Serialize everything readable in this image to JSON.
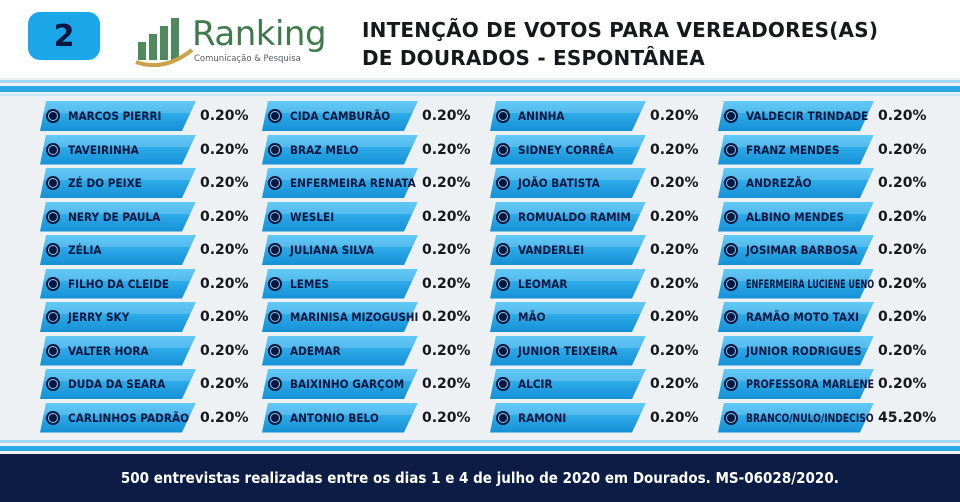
{
  "header": {
    "number": "2",
    "logo_name": "Ranking",
    "logo_tagline": "Comunicação & Pesquisa",
    "title_line1": "INTENÇÃO DE VOTOS PARA VEREADORES(AS)",
    "title_line2": "DE DOURADOS - ESPONTÂNEA"
  },
  "footer": {
    "note": "500 entrevistas realizadas entre os dias 1 e 4 de julho de 2020 em Dourados. MS-06028/2020."
  },
  "colors": {
    "accent": "#1aa6e8",
    "pill_top": "#3fbef5",
    "pill_bottom": "#1590d6",
    "text_dark": "#0b1640",
    "footer_bg": "#0c1c44",
    "logo_green": "#3f7a4d",
    "logo_gold": "#c9a24a"
  },
  "chart_data": {
    "type": "table",
    "unit": "%",
    "columns": [
      [
        {
          "name": "MARCOS PIERRI",
          "value": 0.2,
          "label": "0.20%"
        },
        {
          "name": "TAVEIRINHA",
          "value": 0.2,
          "label": "0.20%"
        },
        {
          "name": "ZÉ DO PEIXE",
          "value": 0.2,
          "label": "0.20%"
        },
        {
          "name": "NERY DE PAULA",
          "value": 0.2,
          "label": "0.20%"
        },
        {
          "name": "ZÉLIA",
          "value": 0.2,
          "label": "0.20%"
        },
        {
          "name": "FILHO DA CLEIDE",
          "value": 0.2,
          "label": "0.20%"
        },
        {
          "name": "JERRY SKY",
          "value": 0.2,
          "label": "0.20%"
        },
        {
          "name": "VALTER HORA",
          "value": 0.2,
          "label": "0.20%"
        },
        {
          "name": "DUDA DA SEARA",
          "value": 0.2,
          "label": "0.20%"
        },
        {
          "name": "CARLINHOS PADRÃO",
          "value": 0.2,
          "label": "0.20%"
        }
      ],
      [
        {
          "name": "CIDA CAMBURÃO",
          "value": 0.2,
          "label": "0.20%"
        },
        {
          "name": "BRAZ MELO",
          "value": 0.2,
          "label": "0.20%"
        },
        {
          "name": "ENFERMEIRA RENATA",
          "value": 0.2,
          "label": "0.20%"
        },
        {
          "name": "WESLEI",
          "value": 0.2,
          "label": "0.20%"
        },
        {
          "name": "JULIANA SILVA",
          "value": 0.2,
          "label": "0.20%"
        },
        {
          "name": "LEMES",
          "value": 0.2,
          "label": "0.20%"
        },
        {
          "name": "MARINISA MIZOGUSHI",
          "value": 0.2,
          "label": "0.20%"
        },
        {
          "name": "ADEMAR",
          "value": 0.2,
          "label": "0.20%"
        },
        {
          "name": "BAIXINHO GARÇOM",
          "value": 0.2,
          "label": "0.20%"
        },
        {
          "name": "ANTONIO BELO",
          "value": 0.2,
          "label": "0.20%"
        }
      ],
      [
        {
          "name": "ANINHA",
          "value": 0.2,
          "label": "0.20%"
        },
        {
          "name": "SIDNEY CORRÊA",
          "value": 0.2,
          "label": "0.20%"
        },
        {
          "name": "JOÃO BATISTA",
          "value": 0.2,
          "label": "0.20%"
        },
        {
          "name": "ROMUALDO RAMIM",
          "value": 0.2,
          "label": "0.20%"
        },
        {
          "name": "VANDERLEI",
          "value": 0.2,
          "label": "0.20%"
        },
        {
          "name": "LEOMAR",
          "value": 0.2,
          "label": "0.20%"
        },
        {
          "name": "MÃO",
          "value": 0.2,
          "label": "0.20%"
        },
        {
          "name": "JUNIOR TEIXEIRA",
          "value": 0.2,
          "label": "0.20%"
        },
        {
          "name": "ALCIR",
          "value": 0.2,
          "label": "0.20%"
        },
        {
          "name": "RAMONI",
          "value": 0.2,
          "label": "0.20%"
        }
      ],
      [
        {
          "name": "VALDECIR TRINDADE",
          "value": 0.2,
          "label": "0.20%"
        },
        {
          "name": "FRANZ MENDES",
          "value": 0.2,
          "label": "0.20%"
        },
        {
          "name": "ANDREZÃO",
          "value": 0.2,
          "label": "0.20%"
        },
        {
          "name": "ALBINO MENDES",
          "value": 0.2,
          "label": "0.20%"
        },
        {
          "name": "JOSIMAR BARBOSA",
          "value": 0.2,
          "label": "0.20%"
        },
        {
          "name": "ENFERMEIRA LUCIENE UENO",
          "value": 0.2,
          "label": "0.20%"
        },
        {
          "name": "RAMÃO MOTO TAXI",
          "value": 0.2,
          "label": "0.20%"
        },
        {
          "name": "JUNIOR RODRIGUES",
          "value": 0.2,
          "label": "0.20%"
        },
        {
          "name": "PROFESSORA MARLENE",
          "value": 0.2,
          "label": "0.20%"
        },
        {
          "name": "BRANCO/NULO/INDECISO",
          "value": 45.2,
          "label": "45.20%"
        }
      ]
    ]
  }
}
